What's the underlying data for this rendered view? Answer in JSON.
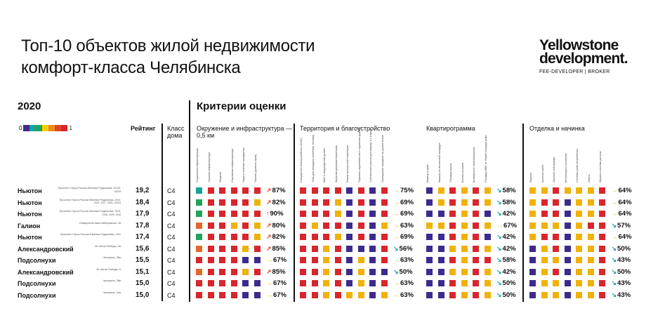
{
  "title": [
    "Топ-10 объектов жилой недвижимости",
    "комфорт-класса Челябинска"
  ],
  "logo": {
    "line1": "Yellowstone",
    "line2": "development.",
    "tagline": "FEE-DEVELOPER  |  BROKER"
  },
  "year": "2020",
  "criteria_title": "Критерии оценки",
  "legend": {
    "min": "0",
    "max": "1",
    "colors": [
      "#3d2a8e",
      "#17a09c",
      "#21a35a",
      "#f1d100",
      "#ec8a1e",
      "#e04528",
      "#d7262b"
    ]
  },
  "colors": {
    "P": "#3d2a8e",
    "T": "#17a09c",
    "G": "#21a35a",
    "Y": "#f0b20a",
    "O": "#e5682a",
    "R": "#d8262c"
  },
  "arrows": {
    "up": {
      "glyph": "↑",
      "color": "#e04528"
    },
    "upright": {
      "glyph": "↗",
      "color": "#e04528"
    },
    "right": {
      "glyph": "→",
      "color": "#f0c300"
    },
    "downright": {
      "glyph": "↘",
      "color": "#17a09c"
    }
  },
  "columns": {
    "rating": "Рейтинг",
    "class": "Класс дома"
  },
  "chart_data": {
    "type": "table",
    "sections": [
      {
        "title": "Окружение и инфраструктура — 0,5 км",
        "criteria": [
          "Социальная инфраструктура",
          "Торговая инфраструктура",
          "Общепит",
          "Спортивная инфраструктура",
          "Парки и зелёные насаждения",
          "Тишина (уровень шума)"
        ]
      },
      {
        "title": "Территория и благоустройство",
        "criteria": [
          "Стандартное благоустройство (СНиП)",
          "Тема для площадок (семейная, беговая)",
          "МАФ и ландшафтный дизайн",
          "Закрытая дворовая территория",
          "Режим прогулочной территории",
          "Парковка (подземная или в отдельном здании)",
          "Собственные участки для квартир 1-х этажей",
          "Проходимые парадные на уровне земли"
        ]
      },
      {
        "title": "Квартирограмма",
        "criteria": [
          "Квартир в доме",
          "Квартир на лестничной площадке",
          "Площадь кухонь",
          "Высота потолков",
          "Возможность перепланировки",
          "Площадь МОП от общей площади дома"
        ]
      },
      {
        "title": "Отделка и начинка",
        "criteria": [
          "Отделка",
          "Качество работ",
          "Оконные конструкции",
          "Вентиляция и отопление",
          "Системы учета потребления",
          "Лифты",
          "Охрана и система доступа"
        ]
      }
    ],
    "rows": [
      {
        "name": "Ньютон",
        "address": "Проспект Героя России Евгения Родионова, 20/25, 20/24",
        "rating": "19,2",
        "class": "С4",
        "scores": [
          [
            "TRRRRR",
            "upright",
            "87%"
          ],
          [
            "RRRRPRPR",
            "right",
            "75%"
          ],
          [
            "PYRYRY",
            "downright",
            "58%"
          ],
          [
            "YYRYYYR",
            "right",
            "64%"
          ]
        ]
      },
      {
        "name": "Ньютон",
        "address": "Проспект Героя России Евгения Родионова, 20/2, 20/4, 20/7, 20/9, 20/10",
        "rating": "18,4",
        "class": "С4",
        "scores": [
          [
            "GRRRRY",
            "upright",
            "82%"
          ],
          [
            "RRRYPRPR",
            "right",
            "69%"
          ],
          [
            "PYRYRY",
            "downright",
            "58%"
          ],
          [
            "YRRPYYR",
            "right",
            "64%"
          ]
        ]
      },
      {
        "name": "Ньютон",
        "address": "Проспект Героя России Евгения Родионова, 20/3, 20/5, 20/6, 20/8",
        "rating": "17,9",
        "class": "С4",
        "scores": [
          [
            "GRRRRR",
            "up",
            "90%"
          ],
          [
            "RRRYPRPR",
            "right",
            "69%"
          ],
          [
            "PPRYRP",
            "downright",
            "42%"
          ],
          [
            "YRRPYYR",
            "right",
            "64%"
          ]
        ]
      },
      {
        "name": "Галион",
        "address": "Университетская Набережная, 28",
        "rating": "17,8",
        "class": "С4",
        "scores": [
          [
            "ORRYRY",
            "upright",
            "80%"
          ],
          [
            "RYRRPRPY",
            "right",
            "63%"
          ],
          [
            "YYRYRY",
            "right",
            "67%"
          ],
          [
            "YYYPYRR",
            "downright",
            "57%"
          ]
        ]
      },
      {
        "name": "Ньютон",
        "address": "Проспект Героя России Евгения Родионова, 20/1",
        "rating": "17,4",
        "class": "С4",
        "scores": [
          [
            "GRRRRY",
            "upright",
            "82%"
          ],
          [
            "RRRYPRPR",
            "right",
            "69%"
          ],
          [
            "PPRYRP",
            "downright",
            "42%"
          ],
          [
            "YRRPYYR",
            "right",
            "64%"
          ]
        ]
      },
      {
        "name": "Александровский",
        "address": "40-летия Победы, 9а",
        "rating": "15,6",
        "class": "С4",
        "scores": [
          [
            "ORRRYR",
            "upright",
            "85%"
          ],
          [
            "RRYRPPPR",
            "downright",
            "56%"
          ],
          [
            "PPYYRY",
            "downright",
            "42%"
          ],
          [
            "PYRPYYR",
            "downright",
            "50%"
          ]
        ]
      },
      {
        "name": "Подсолнухи",
        "address": "Чичерина, 38а",
        "rating": "15,5",
        "class": "С4",
        "scores": [
          [
            "RRRRPP",
            "right",
            "67%"
          ],
          [
            "RRYRPYPR",
            "right",
            "63%"
          ],
          [
            "PPRYRR",
            "downright",
            "58%"
          ],
          [
            "PYYPYYR",
            "downright",
            "43%"
          ]
        ]
      },
      {
        "name": "Александровский",
        "address": "40-летия Победы, 9",
        "rating": "15,1",
        "class": "С4",
        "scores": [
          [
            "ORRRYR",
            "upright",
            "85%"
          ],
          [
            "RRYRPYPP",
            "downright",
            "50%"
          ],
          [
            "PPYYRY",
            "downright",
            "42%"
          ],
          [
            "PYRPYYR",
            "downright",
            "50%"
          ]
        ]
      },
      {
        "name": "Подсолнухи",
        "address": "Чичерина, 38в",
        "rating": "15,0",
        "class": "С4",
        "scores": [
          [
            "RRRRPP",
            "right",
            "67%"
          ],
          [
            "RRYRPYPR",
            "right",
            "63%"
          ],
          [
            "PPRYRY",
            "downright",
            "50%"
          ],
          [
            "PYYPYYR",
            "downright",
            "43%"
          ]
        ]
      },
      {
        "name": "Подсолнухи",
        "address": "Чичерина, 34а",
        "rating": "15,0",
        "class": "С4",
        "scores": [
          [
            "RRRRPP",
            "right",
            "67%"
          ],
          [
            "RRYRYYPY",
            "right",
            "63%"
          ],
          [
            "PPRYRY",
            "downright",
            "50%"
          ],
          [
            "PYYPYYR",
            "downright",
            "43%"
          ]
        ]
      }
    ]
  }
}
